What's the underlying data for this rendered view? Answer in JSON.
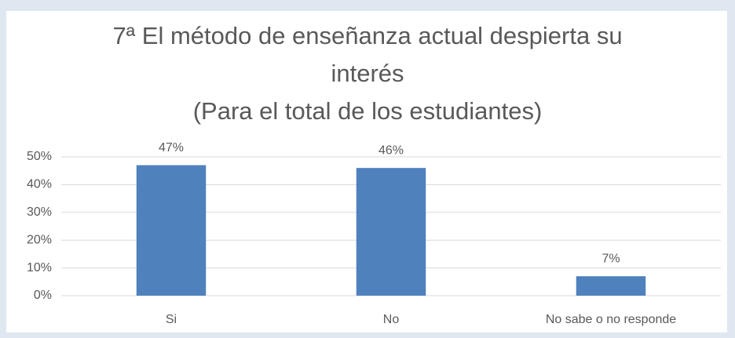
{
  "chart_data": {
    "type": "bar",
    "title": "7ª El método de enseñanza actual despierta su interés",
    "subtitle": "(Para el total de los estudiantes)",
    "categories": [
      "Si",
      "No",
      "No sabe o no responde"
    ],
    "values": [
      47,
      46,
      7
    ],
    "value_labels": [
      "47%",
      "46%",
      "7%"
    ],
    "color": "#4f81bd",
    "ylim": [
      0,
      50
    ],
    "yticks": [
      {
        "value": 0,
        "label": "0%"
      },
      {
        "value": 10,
        "label": "10%"
      },
      {
        "value": 20,
        "label": "20%"
      },
      {
        "value": 30,
        "label": "30%"
      },
      {
        "value": 40,
        "label": "40%"
      },
      {
        "value": 50,
        "label": "50%"
      }
    ],
    "grid": true
  }
}
